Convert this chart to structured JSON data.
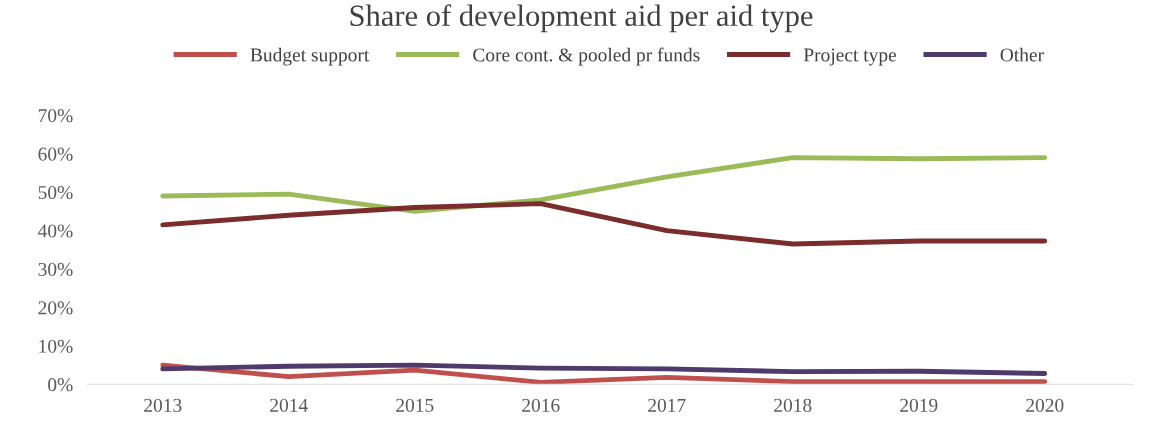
{
  "chart_data": {
    "type": "line",
    "title": "Share of development aid per aid type",
    "categories": [
      "2013",
      "2014",
      "2015",
      "2016",
      "2017",
      "2018",
      "2019",
      "2020"
    ],
    "series": [
      {
        "name": "Budget support",
        "color": "#c0504d",
        "values": [
          5,
          2,
          3.7,
          0.5,
          1.8,
          0.7,
          0.7,
          0.7
        ]
      },
      {
        "name": "Core cont. & pooled pr funds",
        "color": "#9bbb59",
        "values": [
          49,
          49.5,
          45,
          48,
          54,
          59,
          58.7,
          59
        ]
      },
      {
        "name": "Project type",
        "color": "#7b2c2c",
        "values": [
          41.5,
          44,
          46,
          47,
          40,
          36.5,
          37.3,
          37.3
        ]
      },
      {
        "name": "Other",
        "color": "#4f3b6b",
        "values": [
          4,
          4.7,
          5,
          4.2,
          4,
          3.3,
          3.4,
          2.8
        ]
      }
    ],
    "ylim": [
      0,
      70
    ],
    "yticks": [
      {
        "value": 0,
        "label": "0%"
      },
      {
        "value": 10,
        "label": "10%"
      },
      {
        "value": 20,
        "label": "20%"
      },
      {
        "value": 30,
        "label": "30%"
      },
      {
        "value": 40,
        "label": "40%"
      },
      {
        "value": 50,
        "label": "50%"
      },
      {
        "value": 60,
        "label": "60%"
      },
      {
        "value": 70,
        "label": "70%"
      }
    ],
    "grid": false,
    "legend": "top",
    "marker": "none",
    "line_style": "solid"
  }
}
